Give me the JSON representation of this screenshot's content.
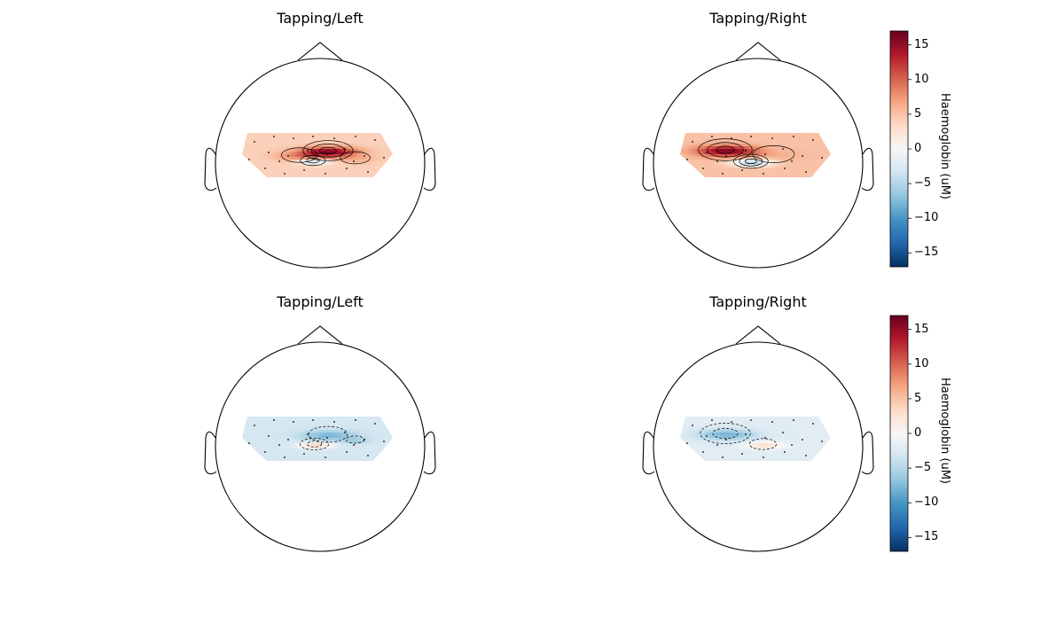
{
  "chart_data": [
    {
      "type": "heatmap",
      "subtype": "topomap",
      "title": "Tapping/Left",
      "colormap": "RdBu_r",
      "clim": [
        -17,
        17
      ],
      "contours": "solid",
      "blobs": [
        {
          "u": 0.57,
          "v": 0.4,
          "sigma": 0.13,
          "value": 16
        },
        {
          "u": 0.38,
          "v": 0.5,
          "sigma": 0.12,
          "value": 8
        },
        {
          "u": 0.75,
          "v": 0.56,
          "sigma": 0.1,
          "value": 6
        },
        {
          "u": 0.47,
          "v": 0.62,
          "sigma": 0.07,
          "value": -5
        }
      ],
      "baseline": 4
    },
    {
      "type": "heatmap",
      "subtype": "topomap",
      "title": "Tapping/Right",
      "colormap": "RdBu_r",
      "clim": [
        -17,
        17
      ],
      "contours": "solid",
      "blobs": [
        {
          "u": 0.3,
          "v": 0.38,
          "sigma": 0.14,
          "value": 16
        },
        {
          "u": 0.62,
          "v": 0.48,
          "sigma": 0.14,
          "value": 6
        },
        {
          "u": 0.47,
          "v": 0.64,
          "sigma": 0.09,
          "value": -6
        }
      ],
      "baseline": 5
    },
    {
      "type": "heatmap",
      "subtype": "topomap",
      "title": "Tapping/Left",
      "colormap": "RdBu_r",
      "clim": [
        -17,
        17
      ],
      "contours": "dashed",
      "blobs": [
        {
          "u": 0.57,
          "v": 0.4,
          "sigma": 0.13,
          "value": -8
        },
        {
          "u": 0.75,
          "v": 0.52,
          "sigma": 0.06,
          "value": -6
        },
        {
          "u": 0.48,
          "v": 0.62,
          "sigma": 0.08,
          "value": 4
        }
      ],
      "baseline": -3
    },
    {
      "type": "heatmap",
      "subtype": "topomap",
      "title": "Tapping/Right",
      "colormap": "RdBu_r",
      "clim": [
        -17,
        17
      ],
      "contours": "dashed",
      "blobs": [
        {
          "u": 0.3,
          "v": 0.38,
          "sigma": 0.14,
          "value": -8
        },
        {
          "u": 0.55,
          "v": 0.62,
          "sigma": 0.09,
          "value": 3
        }
      ],
      "baseline": -2
    }
  ],
  "colorbar": {
    "label": "Haemoglobin (uM)",
    "ticks": [
      15,
      10,
      5,
      0,
      -5,
      -10,
      -15
    ],
    "tick_labels": [
      "15",
      "10",
      "5",
      "0",
      "−5",
      "−10",
      "−15"
    ],
    "range": [
      -17,
      17
    ]
  },
  "colors": {
    "dark_red": "#67001f",
    "white": "#f7f7f7",
    "dark_blue": "#053061",
    "outline": "#000000"
  }
}
